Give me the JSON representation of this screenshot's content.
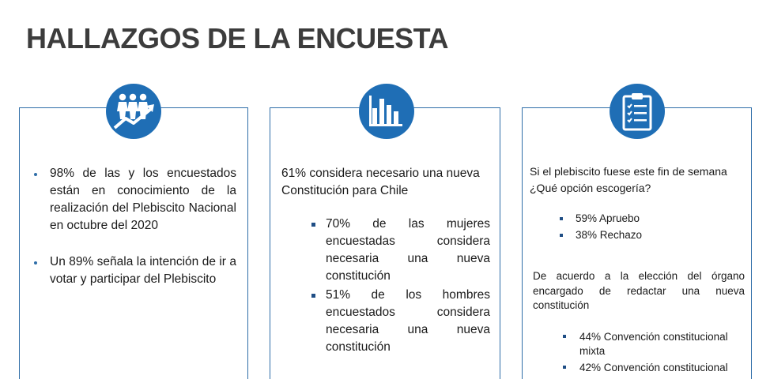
{
  "title": "HALLAZGOS DE LA ENCUESTA",
  "colors": {
    "accent": "#1f6eb5",
    "border": "#2f6ea8",
    "title": "#3c3c3c"
  },
  "card1": {
    "icon": "people-growth-icon",
    "bullets": [
      "98% de las y los encuestados están en conocimiento de la realización del Plebiscito Nacional en octubre del 2020",
      "Un 89% señala la intención de ir a votar y participar del Plebiscito"
    ]
  },
  "card2": {
    "icon": "bar-chart-icon",
    "intro": "61% considera necesario una nueva Constitución para Chile",
    "bullets": [
      "70% de las mujeres encuestadas considera necesaria una nueva constitución",
      "51% de los hombres encuestados considera necesaria una nueva constitución"
    ]
  },
  "card3": {
    "icon": "clipboard-checklist-icon",
    "question": "Si el plebiscito fuese este fin de semana ¿Qué opción escogería?",
    "options": [
      "59% Apruebo",
      "38% Rechazo"
    ],
    "question2": "De acuerdo a la elección del órgano encargado de redactar una nueva constitución",
    "options2": [
      "44% Convención constitucional mixta",
      "42% Convención constitucional"
    ]
  }
}
